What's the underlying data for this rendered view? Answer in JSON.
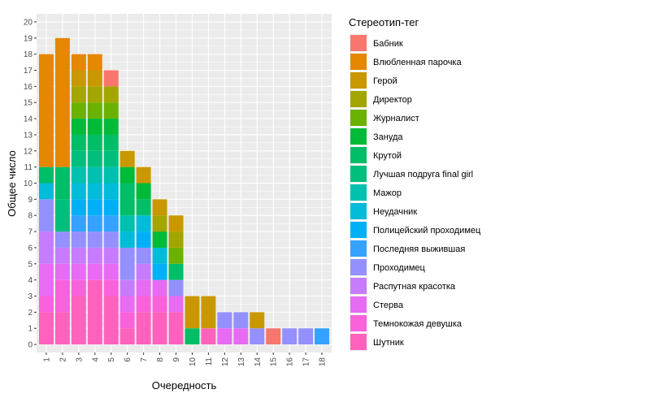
{
  "chart_data": {
    "type": "bar",
    "stacked": true,
    "title": "",
    "xlabel": "Очередность",
    "ylabel": "Общее число",
    "ylim": [
      0,
      20
    ],
    "grid": true,
    "legend": {
      "title": "Стереотип-тег",
      "position": "right"
    },
    "categories": [
      "1",
      "2",
      "3",
      "4",
      "5",
      "6",
      "7",
      "8",
      "9",
      "10",
      "11",
      "12",
      "13",
      "14",
      "15",
      "16",
      "17",
      "18"
    ],
    "y_ticks": [
      "0",
      "1",
      "2",
      "3",
      "4",
      "5",
      "6",
      "7",
      "8",
      "9",
      "10",
      "11",
      "12",
      "13",
      "14",
      "15",
      "16",
      "17",
      "18",
      "19",
      "20"
    ],
    "series": [
      {
        "name": "Бабник",
        "color": "#F8766D",
        "values": [
          0,
          0,
          0,
          0,
          1,
          0,
          0,
          0,
          0,
          0,
          0,
          0,
          0,
          0,
          1,
          0,
          0,
          0
        ]
      },
      {
        "name": "Влюбленная парочка",
        "color": "#E58700",
        "values": [
          7,
          8,
          1,
          1,
          0,
          0,
          0,
          0,
          0,
          0,
          0,
          0,
          0,
          0,
          0,
          0,
          0,
          0
        ]
      },
      {
        "name": "Герой",
        "color": "#C99800",
        "values": [
          0,
          0,
          1,
          1,
          0,
          1,
          1,
          1,
          1,
          2,
          2,
          0,
          0,
          1,
          0,
          0,
          0,
          0
        ]
      },
      {
        "name": "Директор",
        "color": "#A3A500",
        "values": [
          0,
          0,
          1,
          1,
          1,
          0,
          0,
          1,
          1,
          0,
          0,
          0,
          0,
          0,
          0,
          0,
          0,
          0
        ]
      },
      {
        "name": "Журналист",
        "color": "#6BB100",
        "values": [
          0,
          0,
          1,
          1,
          1,
          0,
          0,
          0,
          1,
          0,
          0,
          0,
          0,
          0,
          0,
          0,
          0,
          0
        ]
      },
      {
        "name": "Зануда",
        "color": "#00BA38",
        "values": [
          0,
          0,
          1,
          1,
          1,
          1,
          1,
          1,
          0,
          0,
          0,
          0,
          0,
          0,
          0,
          0,
          0,
          0
        ]
      },
      {
        "name": "Крутой",
        "color": "#00BE67",
        "values": [
          1,
          2,
          1,
          1,
          1,
          2,
          1,
          0,
          1,
          1,
          0,
          0,
          0,
          0,
          0,
          0,
          0,
          0
        ]
      },
      {
        "name": "Лучшая подруга final girl",
        "color": "#00BF7D",
        "values": [
          0,
          2,
          1,
          1,
          1,
          0,
          0,
          0,
          0,
          0,
          0,
          0,
          0,
          0,
          0,
          0,
          0,
          0
        ]
      },
      {
        "name": "Мажор",
        "color": "#00C0AF",
        "values": [
          0,
          0,
          1,
          1,
          1,
          1,
          0,
          0,
          0,
          0,
          0,
          0,
          0,
          0,
          0,
          0,
          0,
          0
        ]
      },
      {
        "name": "Неудачник",
        "color": "#00BCD8",
        "values": [
          1,
          0,
          1,
          1,
          1,
          1,
          1,
          1,
          0,
          0,
          0,
          0,
          0,
          0,
          0,
          0,
          0,
          0
        ]
      },
      {
        "name": "Полицейский проходимец",
        "color": "#00B0F6",
        "values": [
          0,
          0,
          1,
          1,
          1,
          0,
          1,
          1,
          0,
          0,
          0,
          0,
          0,
          0,
          0,
          0,
          0,
          0
        ]
      },
      {
        "name": "Последняя выжившая",
        "color": "#35A2FF",
        "values": [
          0,
          0,
          1,
          1,
          1,
          0,
          0,
          0,
          0,
          0,
          0,
          0,
          0,
          0,
          0,
          0,
          0,
          1
        ]
      },
      {
        "name": "Проходимец",
        "color": "#9590FF",
        "values": [
          2,
          1,
          1,
          1,
          1,
          2,
          1,
          0,
          1,
          0,
          0,
          1,
          1,
          1,
          0,
          1,
          1,
          0
        ]
      },
      {
        "name": "Распутная красотка",
        "color": "#C77CFF",
        "values": [
          2,
          1,
          1,
          1,
          1,
          1,
          1,
          0,
          0,
          0,
          0,
          0,
          0,
          0,
          0,
          0,
          0,
          0
        ]
      },
      {
        "name": "Стерва",
        "color": "#E76BF3",
        "values": [
          2,
          1,
          1,
          1,
          1,
          1,
          1,
          1,
          1,
          0,
          0,
          1,
          1,
          0,
          0,
          0,
          0,
          0
        ]
      },
      {
        "name": "Темнокожая девушка",
        "color": "#FA62DB",
        "values": [
          1,
          2,
          1,
          0,
          1,
          1,
          1,
          1,
          0,
          0,
          0,
          0,
          0,
          0,
          0,
          0,
          0,
          0
        ]
      },
      {
        "name": "Шутник",
        "color": "#FF62BC",
        "values": [
          2,
          2,
          3,
          4,
          3,
          1,
          2,
          2,
          2,
          0,
          1,
          0,
          0,
          0,
          0,
          0,
          0,
          0
        ]
      }
    ]
  }
}
